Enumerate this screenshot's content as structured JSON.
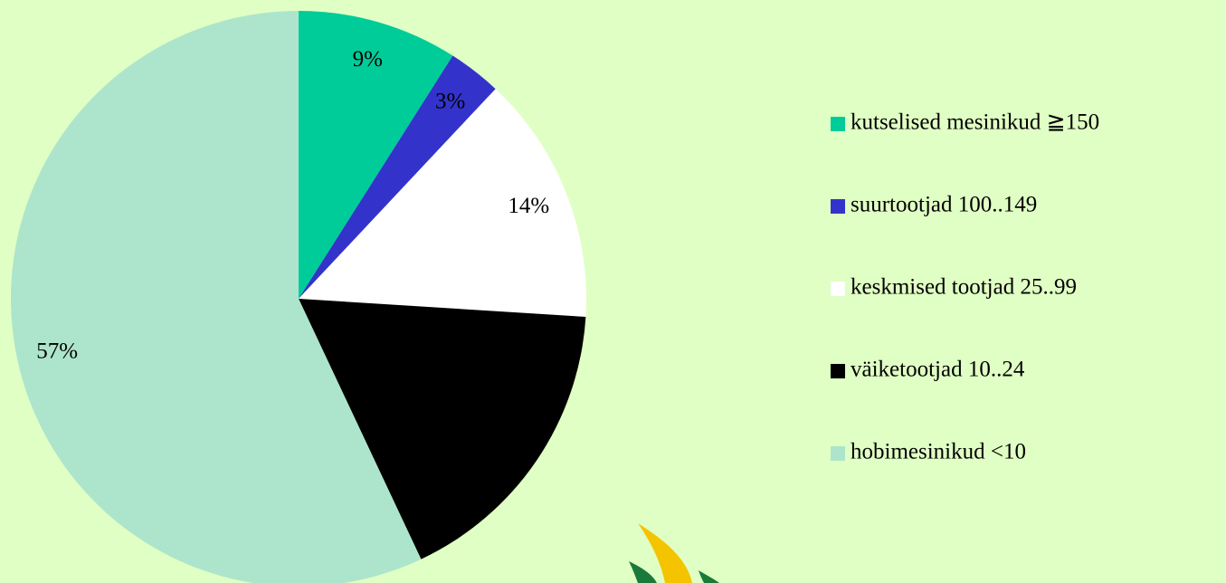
{
  "chart_data": {
    "type": "pie",
    "categories": [
      "kutselised mesinikud ≧150",
      "suurtootjad 100..149",
      "keskmised tootjad 25..99",
      "väiketootjad 10..24",
      "hobimesinikud <10"
    ],
    "values": [
      9,
      3,
      14,
      17,
      57
    ],
    "value_labels": [
      "9%",
      "3%",
      "14%",
      null,
      "57%"
    ],
    "colors": [
      "#00cc99",
      "#3333cc",
      "#ffffff",
      "#000000",
      "#ade5cc"
    ],
    "legend": "right"
  }
}
